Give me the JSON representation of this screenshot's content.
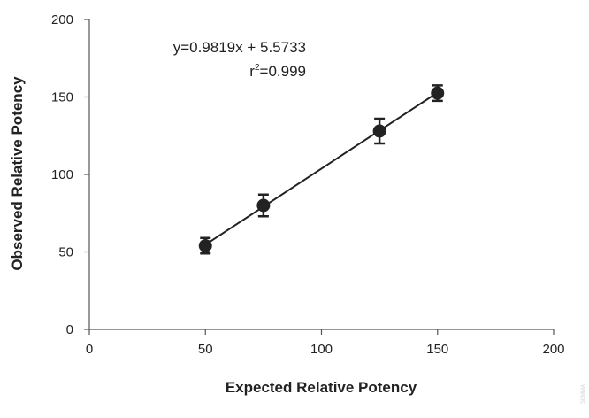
{
  "chart_data": {
    "type": "scatter",
    "xlabel": "Expected Relative Potency",
    "ylabel": "Observed Relative Potency",
    "xlim": [
      0,
      200
    ],
    "ylim": [
      0,
      200
    ],
    "xticks": [
      0,
      50,
      100,
      150,
      200
    ],
    "yticks": [
      0,
      50,
      100,
      150,
      200
    ],
    "points": [
      {
        "x": 50,
        "y": 54,
        "err": 5
      },
      {
        "x": 75,
        "y": 80,
        "err": 7
      },
      {
        "x": 125,
        "y": 128,
        "err": 8
      },
      {
        "x": 150,
        "y": 152.5,
        "err": 5
      }
    ],
    "fit": {
      "slope": 0.9819,
      "intercept": 5.5733,
      "x_range": [
        50,
        150
      ]
    },
    "annotation": {
      "equation": "y=0.9819x + 5.5733",
      "r2_label": "r",
      "r2_sup": "2",
      "r2_value": "=0.999"
    },
    "grid": false,
    "legend": "none"
  },
  "watermark": "SEMMA"
}
